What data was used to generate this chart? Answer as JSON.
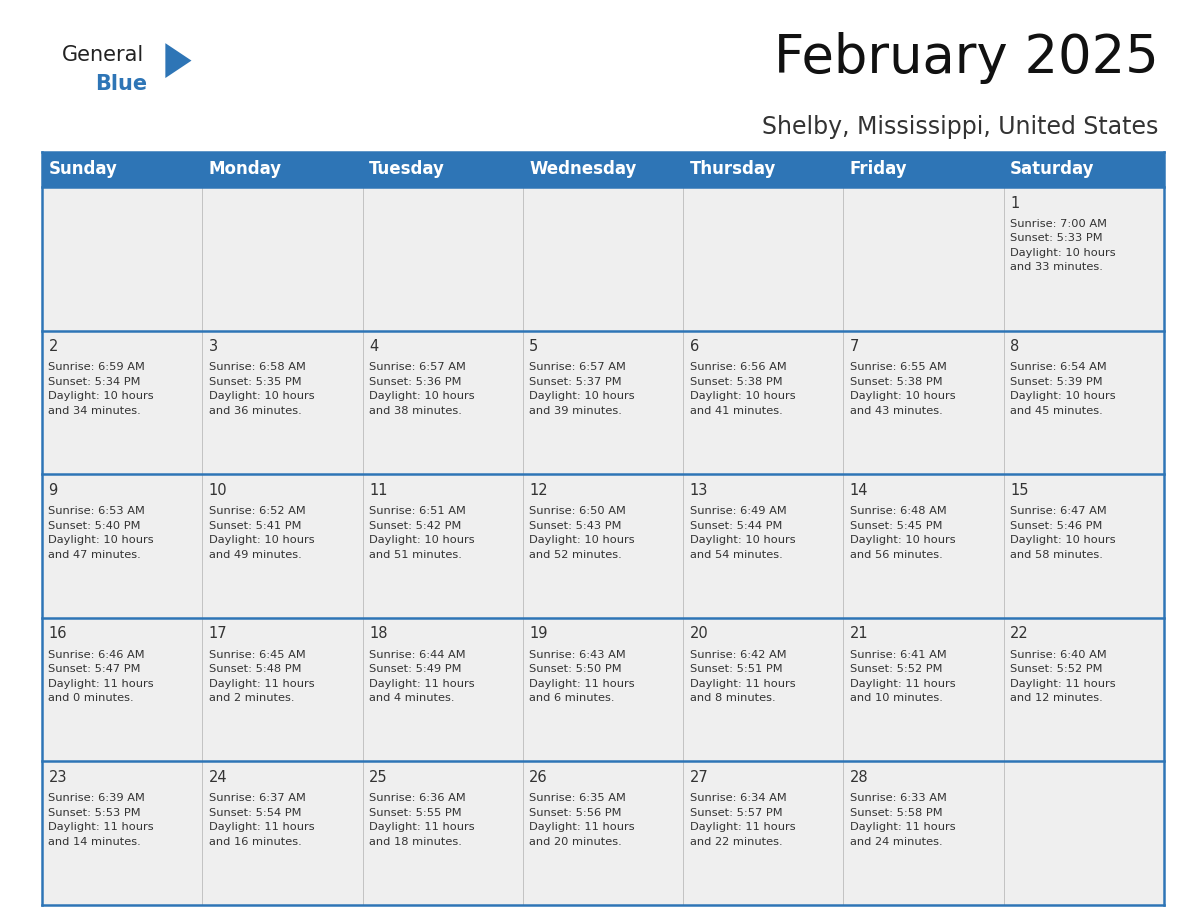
{
  "title": "February 2025",
  "subtitle": "Shelby, Mississippi, United States",
  "header_color": "#2E75B6",
  "header_text_color": "#FFFFFF",
  "cell_bg_color": "#EFEFEF",
  "border_color": "#2E75B6",
  "text_color": "#333333",
  "days_of_week": [
    "Sunday",
    "Monday",
    "Tuesday",
    "Wednesday",
    "Thursday",
    "Friday",
    "Saturday"
  ],
  "calendar_data": [
    [
      null,
      null,
      null,
      null,
      null,
      null,
      {
        "day": 1,
        "sunrise": "7:00 AM",
        "sunset": "5:33 PM",
        "daylight_hours": 10,
        "daylight_minutes": 33
      }
    ],
    [
      {
        "day": 2,
        "sunrise": "6:59 AM",
        "sunset": "5:34 PM",
        "daylight_hours": 10,
        "daylight_minutes": 34
      },
      {
        "day": 3,
        "sunrise": "6:58 AM",
        "sunset": "5:35 PM",
        "daylight_hours": 10,
        "daylight_minutes": 36
      },
      {
        "day": 4,
        "sunrise": "6:57 AM",
        "sunset": "5:36 PM",
        "daylight_hours": 10,
        "daylight_minutes": 38
      },
      {
        "day": 5,
        "sunrise": "6:57 AM",
        "sunset": "5:37 PM",
        "daylight_hours": 10,
        "daylight_minutes": 39
      },
      {
        "day": 6,
        "sunrise": "6:56 AM",
        "sunset": "5:38 PM",
        "daylight_hours": 10,
        "daylight_minutes": 41
      },
      {
        "day": 7,
        "sunrise": "6:55 AM",
        "sunset": "5:38 PM",
        "daylight_hours": 10,
        "daylight_minutes": 43
      },
      {
        "day": 8,
        "sunrise": "6:54 AM",
        "sunset": "5:39 PM",
        "daylight_hours": 10,
        "daylight_minutes": 45
      }
    ],
    [
      {
        "day": 9,
        "sunrise": "6:53 AM",
        "sunset": "5:40 PM",
        "daylight_hours": 10,
        "daylight_minutes": 47
      },
      {
        "day": 10,
        "sunrise": "6:52 AM",
        "sunset": "5:41 PM",
        "daylight_hours": 10,
        "daylight_minutes": 49
      },
      {
        "day": 11,
        "sunrise": "6:51 AM",
        "sunset": "5:42 PM",
        "daylight_hours": 10,
        "daylight_minutes": 51
      },
      {
        "day": 12,
        "sunrise": "6:50 AM",
        "sunset": "5:43 PM",
        "daylight_hours": 10,
        "daylight_minutes": 52
      },
      {
        "day": 13,
        "sunrise": "6:49 AM",
        "sunset": "5:44 PM",
        "daylight_hours": 10,
        "daylight_minutes": 54
      },
      {
        "day": 14,
        "sunrise": "6:48 AM",
        "sunset": "5:45 PM",
        "daylight_hours": 10,
        "daylight_minutes": 56
      },
      {
        "day": 15,
        "sunrise": "6:47 AM",
        "sunset": "5:46 PM",
        "daylight_hours": 10,
        "daylight_minutes": 58
      }
    ],
    [
      {
        "day": 16,
        "sunrise": "6:46 AM",
        "sunset": "5:47 PM",
        "daylight_hours": 11,
        "daylight_minutes": 0
      },
      {
        "day": 17,
        "sunrise": "6:45 AM",
        "sunset": "5:48 PM",
        "daylight_hours": 11,
        "daylight_minutes": 2
      },
      {
        "day": 18,
        "sunrise": "6:44 AM",
        "sunset": "5:49 PM",
        "daylight_hours": 11,
        "daylight_minutes": 4
      },
      {
        "day": 19,
        "sunrise": "6:43 AM",
        "sunset": "5:50 PM",
        "daylight_hours": 11,
        "daylight_minutes": 6
      },
      {
        "day": 20,
        "sunrise": "6:42 AM",
        "sunset": "5:51 PM",
        "daylight_hours": 11,
        "daylight_minutes": 8
      },
      {
        "day": 21,
        "sunrise": "6:41 AM",
        "sunset": "5:52 PM",
        "daylight_hours": 11,
        "daylight_minutes": 10
      },
      {
        "day": 22,
        "sunrise": "6:40 AM",
        "sunset": "5:52 PM",
        "daylight_hours": 11,
        "daylight_minutes": 12
      }
    ],
    [
      {
        "day": 23,
        "sunrise": "6:39 AM",
        "sunset": "5:53 PM",
        "daylight_hours": 11,
        "daylight_minutes": 14
      },
      {
        "day": 24,
        "sunrise": "6:37 AM",
        "sunset": "5:54 PM",
        "daylight_hours": 11,
        "daylight_minutes": 16
      },
      {
        "day": 25,
        "sunrise": "6:36 AM",
        "sunset": "5:55 PM",
        "daylight_hours": 11,
        "daylight_minutes": 18
      },
      {
        "day": 26,
        "sunrise": "6:35 AM",
        "sunset": "5:56 PM",
        "daylight_hours": 11,
        "daylight_minutes": 20
      },
      {
        "day": 27,
        "sunrise": "6:34 AM",
        "sunset": "5:57 PM",
        "daylight_hours": 11,
        "daylight_minutes": 22
      },
      {
        "day": 28,
        "sunrise": "6:33 AM",
        "sunset": "5:58 PM",
        "daylight_hours": 11,
        "daylight_minutes": 24
      },
      null
    ]
  ],
  "logo_general_color": "#222222",
  "logo_blue_color": "#2E75B6",
  "title_fontsize": 38,
  "subtitle_fontsize": 17,
  "header_fontsize": 12,
  "day_number_fontsize": 10.5,
  "cell_text_fontsize": 8.2,
  "fig_width": 11.88,
  "fig_height": 9.18,
  "dpi": 100
}
